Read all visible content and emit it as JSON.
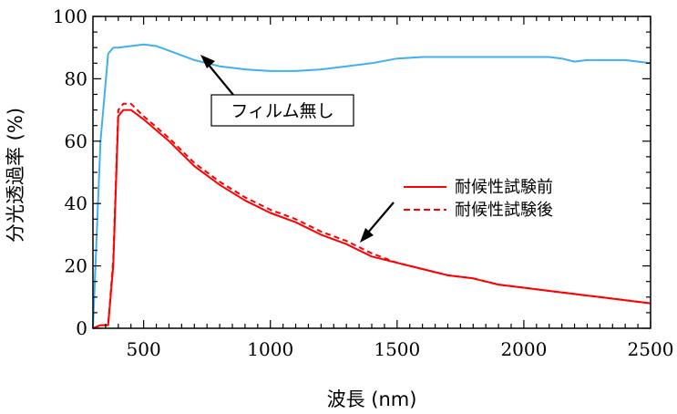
{
  "chart_data": {
    "type": "line",
    "xlabel": "波長 (nm)",
    "ylabel": "分光透過率 (%)",
    "xlim": [
      300,
      2500
    ],
    "ylim": [
      0,
      100
    ],
    "xticks": [
      500,
      1000,
      1500,
      2000,
      2500
    ],
    "yticks": [
      0,
      20,
      40,
      60,
      80,
      100
    ],
    "grid": false,
    "legend_position": "inside-right",
    "series": [
      {
        "name": "耐候性試験前",
        "color": "#ff0000",
        "dash": "solid",
        "x": [
          300,
          330,
          360,
          380,
          400,
          420,
          450,
          500,
          600,
          700,
          800,
          900,
          1000,
          1100,
          1200,
          1300,
          1400,
          1500,
          1600,
          1700,
          1800,
          1900,
          2000,
          2100,
          2200,
          2300,
          2400,
          2500
        ],
        "y": [
          0,
          1,
          1,
          20,
          68,
          70,
          70,
          67,
          60,
          52,
          46,
          41,
          37,
          34,
          30,
          27,
          23,
          21,
          19,
          17,
          16,
          14,
          13,
          12,
          11,
          10,
          9,
          8
        ]
      },
      {
        "name": "耐候性試験後",
        "color": "#ff0000",
        "dash": "dashed",
        "x": [
          300,
          330,
          360,
          380,
          400,
          420,
          450,
          500,
          600,
          700,
          800,
          900,
          1000,
          1100,
          1200,
          1300,
          1400,
          1500,
          1600,
          1700,
          1800,
          1900,
          2000,
          2100,
          2200,
          2300,
          2400,
          2500
        ],
        "y": [
          0,
          1,
          1,
          22,
          70,
          72,
          72,
          68,
          61,
          53,
          47,
          42,
          38,
          35,
          31,
          28,
          24,
          21,
          19,
          17,
          16,
          14,
          13,
          12,
          11,
          10,
          9,
          8
        ]
      },
      {
        "color": "#40b0f0",
        "dash": "solid",
        "x": [
          300,
          330,
          360,
          380,
          400,
          450,
          500,
          550,
          600,
          700,
          800,
          900,
          1000,
          1100,
          1200,
          1300,
          1400,
          1500,
          1600,
          1700,
          1800,
          1900,
          2000,
          2100,
          2150,
          2200,
          2250,
          2300,
          2400,
          2500
        ],
        "y": [
          0,
          60,
          88,
          90,
          90,
          90.5,
          91,
          90.5,
          89,
          86,
          84,
          83,
          82.5,
          82.5,
          83,
          84,
          85,
          86.5,
          87,
          87,
          87,
          87,
          87,
          87,
          86.5,
          85.5,
          86,
          86,
          86,
          85
        ]
      }
    ],
    "annotations": [
      {
        "text": "フィルム無し"
      }
    ]
  }
}
